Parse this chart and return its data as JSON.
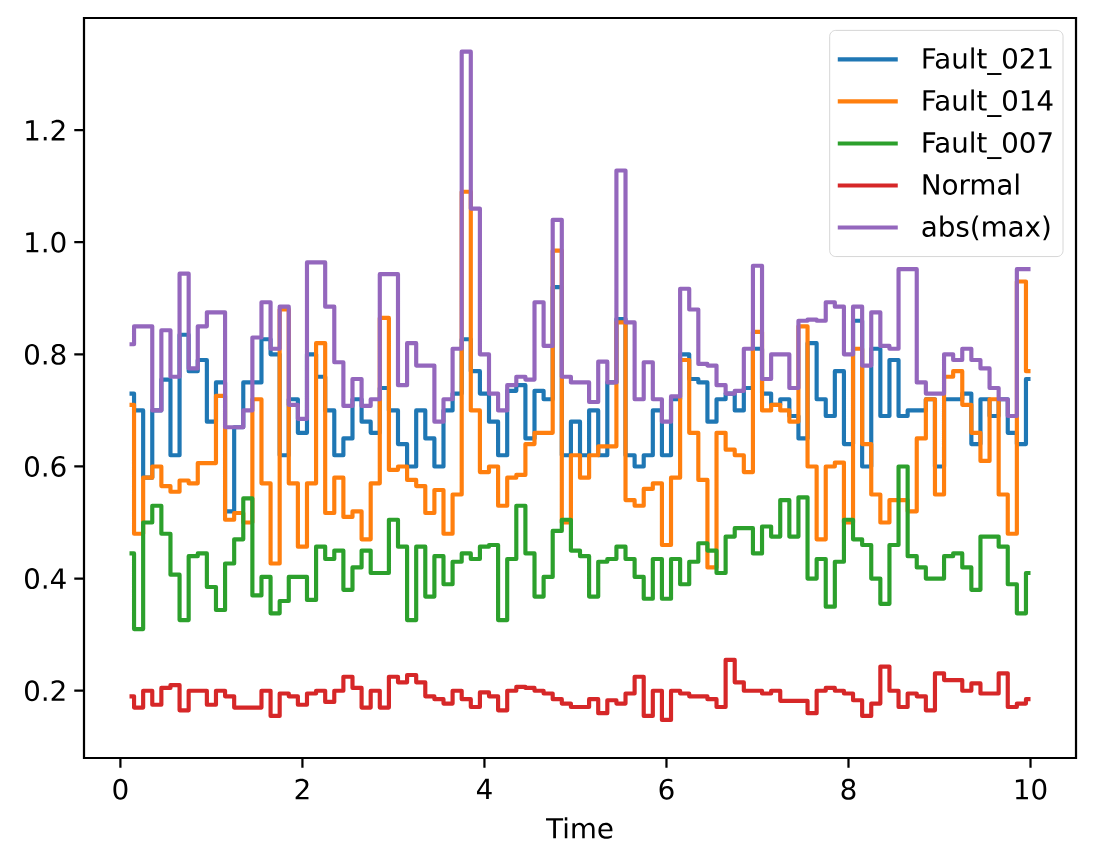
{
  "chart_data": {
    "type": "step",
    "xlabel": "Time",
    "x": [
      0.1,
      0.2,
      0.3,
      0.4,
      0.5,
      0.6,
      0.7,
      0.8,
      0.9,
      1.0,
      1.1,
      1.2,
      1.3,
      1.4,
      1.5,
      1.6,
      1.7,
      1.8,
      1.9,
      2.0,
      2.1,
      2.2,
      2.3,
      2.4,
      2.5,
      2.6,
      2.7,
      2.8,
      2.9,
      3.0,
      3.1,
      3.2,
      3.3,
      3.4,
      3.5,
      3.6,
      3.7,
      3.8,
      3.9,
      4.0,
      4.1,
      4.2,
      4.3,
      4.4,
      4.5,
      4.6,
      4.7,
      4.8,
      4.9,
      5.0,
      5.1,
      5.2,
      5.3,
      5.4,
      5.5,
      5.6,
      5.7,
      5.8,
      5.9,
      6.0,
      6.1,
      6.2,
      6.3,
      6.4,
      6.5,
      6.6,
      6.7,
      6.8,
      6.9,
      7.0,
      7.1,
      7.2,
      7.3,
      7.4,
      7.5,
      7.6,
      7.7,
      7.8,
      7.9,
      8.0,
      8.1,
      8.2,
      8.3,
      8.4,
      8.5,
      8.6,
      8.7,
      8.8,
      8.9,
      9.0,
      9.1,
      9.2,
      9.3,
      9.4,
      9.5,
      9.6,
      9.7,
      9.8,
      9.9,
      10.0
    ],
    "series": [
      {
        "name": "Fault_021",
        "color": "#1f77b4",
        "values": [
          0.73,
          0.7,
          0.58,
          0.7,
          0.755,
          0.62,
          0.835,
          0.77,
          0.79,
          0.68,
          0.75,
          0.52,
          0.67,
          0.75,
          0.75,
          0.827,
          0.8,
          0.62,
          0.72,
          0.66,
          0.8,
          0.76,
          0.7,
          0.62,
          0.65,
          0.72,
          0.68,
          0.66,
          0.74,
          0.7,
          0.64,
          0.6,
          0.7,
          0.65,
          0.6,
          0.7,
          0.73,
          0.827,
          0.77,
          0.73,
          0.68,
          0.62,
          0.735,
          0.745,
          0.65,
          0.735,
          0.72,
          0.92,
          0.62,
          0.68,
          0.62,
          0.7,
          0.62,
          0.75,
          0.863,
          0.62,
          0.6,
          0.62,
          0.7,
          0.62,
          0.72,
          0.8,
          0.756,
          0.75,
          0.68,
          0.72,
          0.73,
          0.7,
          0.74,
          0.81,
          0.73,
          0.71,
          0.72,
          0.69,
          0.65,
          0.82,
          0.72,
          0.69,
          0.77,
          0.64,
          0.86,
          0.6,
          0.81,
          0.69,
          0.79,
          0.69,
          0.7,
          0.7,
          0.72,
          0.6,
          0.72,
          0.72,
          0.73,
          0.64,
          0.72,
          0.69,
          0.72,
          0.66,
          0.64,
          0.756
        ]
      },
      {
        "name": "Fault_014",
        "color": "#ff7f0e",
        "values": [
          0.71,
          0.48,
          0.58,
          0.6,
          0.565,
          0.555,
          0.575,
          0.57,
          0.606,
          0.606,
          0.726,
          0.505,
          0.517,
          0.5,
          0.72,
          0.57,
          0.427,
          0.88,
          0.57,
          0.457,
          0.57,
          0.82,
          0.517,
          0.58,
          0.51,
          0.52,
          0.47,
          0.57,
          0.865,
          0.594,
          0.6,
          0.576,
          0.565,
          0.517,
          0.558,
          0.48,
          0.55,
          1.09,
          0.7,
          0.59,
          0.6,
          0.53,
          0.58,
          0.585,
          0.64,
          0.66,
          0.66,
          0.985,
          0.5,
          0.62,
          0.58,
          0.62,
          0.636,
          0.636,
          0.857,
          0.54,
          0.53,
          0.56,
          0.57,
          0.46,
          0.58,
          0.79,
          0.66,
          0.576,
          0.42,
          0.66,
          0.63,
          0.62,
          0.59,
          0.84,
          0.7,
          0.71,
          0.7,
          0.68,
          0.85,
          0.6,
          0.47,
          0.6,
          0.607,
          0.5,
          0.81,
          0.64,
          0.55,
          0.5,
          0.54,
          0.54,
          0.52,
          0.65,
          0.72,
          0.55,
          0.76,
          0.77,
          0.71,
          0.66,
          0.61,
          0.72,
          0.55,
          0.48,
          0.93,
          0.77
        ]
      },
      {
        "name": "Fault_007",
        "color": "#2ca02c",
        "values": [
          0.445,
          0.31,
          0.5,
          0.53,
          0.48,
          0.407,
          0.326,
          0.44,
          0.445,
          0.385,
          0.344,
          0.427,
          0.47,
          0.543,
          0.37,
          0.403,
          0.338,
          0.36,
          0.403,
          0.403,
          0.362,
          0.457,
          0.435,
          0.45,
          0.38,
          0.42,
          0.45,
          0.41,
          0.41,
          0.505,
          0.457,
          0.326,
          0.457,
          0.368,
          0.44,
          0.39,
          0.43,
          0.445,
          0.435,
          0.457,
          0.46,
          0.326,
          0.435,
          0.53,
          0.445,
          0.368,
          0.403,
          0.485,
          0.505,
          0.45,
          0.44,
          0.368,
          0.43,
          0.435,
          0.457,
          0.435,
          0.403,
          0.364,
          0.435,
          0.364,
          0.435,
          0.39,
          0.43,
          0.463,
          0.45,
          0.41,
          0.475,
          0.49,
          0.49,
          0.445,
          0.493,
          0.475,
          0.54,
          0.475,
          0.545,
          0.4,
          0.435,
          0.35,
          0.43,
          0.505,
          0.47,
          0.46,
          0.4,
          0.355,
          0.46,
          0.6,
          0.44,
          0.42,
          0.4,
          0.4,
          0.44,
          0.445,
          0.42,
          0.38,
          0.475,
          0.475,
          0.457,
          0.39,
          0.338,
          0.41
        ]
      },
      {
        "name": "Normal",
        "color": "#d62728",
        "values": [
          0.19,
          0.17,
          0.2,
          0.175,
          0.205,
          0.21,
          0.165,
          0.2,
          0.2,
          0.175,
          0.2,
          0.19,
          0.17,
          0.17,
          0.17,
          0.2,
          0.155,
          0.195,
          0.19,
          0.175,
          0.195,
          0.2,
          0.18,
          0.2,
          0.225,
          0.205,
          0.17,
          0.2,
          0.17,
          0.225,
          0.215,
          0.228,
          0.215,
          0.19,
          0.185,
          0.177,
          0.2,
          0.185,
          0.171,
          0.197,
          0.19,
          0.165,
          0.2,
          0.207,
          0.205,
          0.2,
          0.195,
          0.185,
          0.177,
          0.171,
          0.171,
          0.185,
          0.16,
          0.183,
          0.177,
          0.195,
          0.225,
          0.155,
          0.2,
          0.148,
          0.2,
          0.195,
          0.19,
          0.19,
          0.185,
          0.171,
          0.255,
          0.215,
          0.2,
          0.2,
          0.195,
          0.2,
          0.182,
          0.182,
          0.182,
          0.16,
          0.2,
          0.205,
          0.2,
          0.195,
          0.183,
          0.155,
          0.177,
          0.243,
          0.2,
          0.171,
          0.195,
          0.19,
          0.165,
          0.231,
          0.219,
          0.219,
          0.2,
          0.213,
          0.195,
          0.195,
          0.231,
          0.171,
          0.177,
          0.185
        ]
      },
      {
        "name": "abs(max)",
        "color": "#9467bd",
        "values": [
          0.818,
          0.85,
          0.85,
          0.7,
          0.843,
          0.76,
          0.944,
          0.775,
          0.85,
          0.875,
          0.875,
          0.67,
          0.67,
          0.7,
          0.83,
          0.893,
          0.81,
          0.885,
          0.71,
          0.685,
          0.964,
          0.964,
          0.885,
          0.786,
          0.708,
          0.756,
          0.708,
          0.72,
          0.943,
          0.943,
          0.745,
          0.82,
          0.78,
          0.78,
          0.68,
          0.72,
          0.81,
          1.34,
          1.06,
          0.8,
          0.73,
          0.7,
          0.745,
          0.76,
          0.755,
          0.893,
          0.815,
          1.04,
          0.76,
          0.75,
          0.75,
          0.715,
          0.787,
          0.75,
          1.128,
          0.857,
          0.72,
          0.786,
          0.72,
          0.68,
          0.725,
          0.917,
          0.88,
          0.783,
          0.78,
          0.745,
          0.73,
          0.735,
          0.81,
          0.958,
          0.756,
          0.8,
          0.8,
          0.74,
          0.86,
          0.862,
          0.86,
          0.893,
          0.885,
          0.8,
          0.885,
          0.78,
          0.875,
          0.815,
          0.81,
          0.952,
          0.952,
          0.75,
          0.73,
          0.73,
          0.8,
          0.79,
          0.81,
          0.79,
          0.775,
          0.74,
          0.72,
          0.69,
          0.952,
          0.952
        ]
      }
    ],
    "xlim": [
      -0.4,
      10.5
    ],
    "ylim": [
      0.08,
      1.4
    ],
    "xticks": [
      0,
      2,
      4,
      6,
      8,
      10
    ],
    "yticks": [
      0.2,
      0.4,
      0.6,
      0.8,
      {
        "value": 1.0,
        "label": "1.0"
      },
      1.2
    ],
    "legend": "top right"
  }
}
